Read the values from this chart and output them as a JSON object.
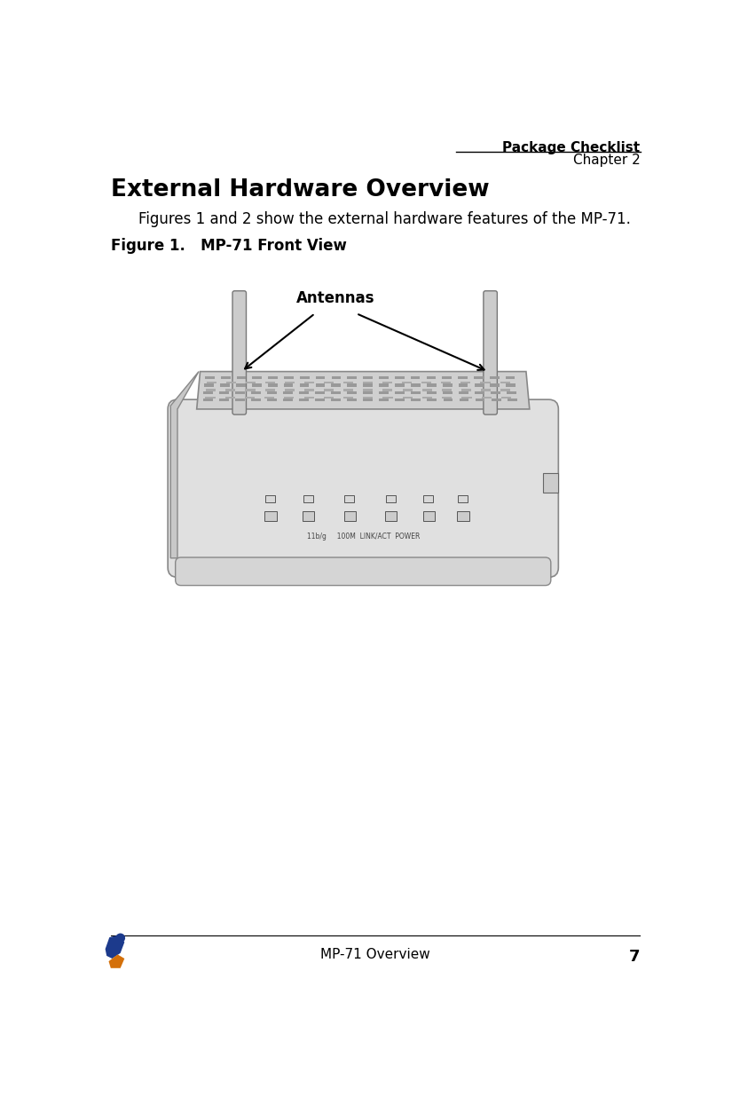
{
  "header_title": "Package Checklist",
  "header_chapter": "Chapter 2",
  "section_title": "External Hardware Overview",
  "body_text": "Figures 1 and 2 show the external hardware features of the MP-71.",
  "figure_label": "Figure 1.",
  "figure_title": "   MP-71 Front View",
  "antennas_label": "Antennas",
  "footer_text": "MP-71 Overview",
  "footer_page": "7",
  "bg_color": "#ffffff",
  "text_color": "#000000",
  "header_line_color": "#000000",
  "footer_line_color": "#000000",
  "logo_blue": "#1c3a8c",
  "logo_orange": "#d4700a",
  "router_body_color": "#e0e0e0",
  "router_top_color": "#d0d0d0",
  "router_edge_color": "#888888",
  "slot_color": "#aaaaaa",
  "antenna_color": "#cccccc",
  "antenna_edge": "#777777"
}
